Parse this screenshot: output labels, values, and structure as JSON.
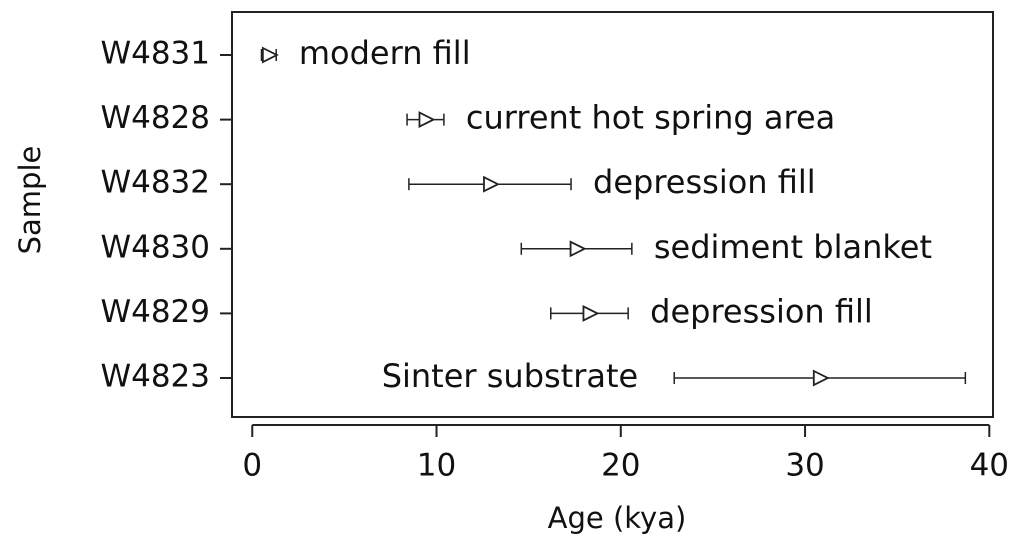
{
  "chart_data": {
    "type": "errorbar",
    "orientation": "horizontal",
    "x_label": "Age (kya)",
    "y_label": "Sample",
    "categories": [
      "W4831",
      "W4828",
      "W4832",
      "W4830",
      "W4829",
      "W4823"
    ],
    "values": [
      0.9,
      9.4,
      12.9,
      17.6,
      18.3,
      30.8
    ],
    "errors": [
      0.4,
      1.0,
      4.4,
      3.0,
      2.1,
      7.9
    ],
    "annotations": [
      "modern fill",
      "current hot spring area",
      "depression fill",
      "sediment blanket",
      "depression fill",
      "Sinter substrate"
    ],
    "color": "#222222",
    "xlim": [
      -1.1,
      40.2
    ],
    "xticks": [
      0,
      10,
      20,
      30,
      40
    ]
  }
}
